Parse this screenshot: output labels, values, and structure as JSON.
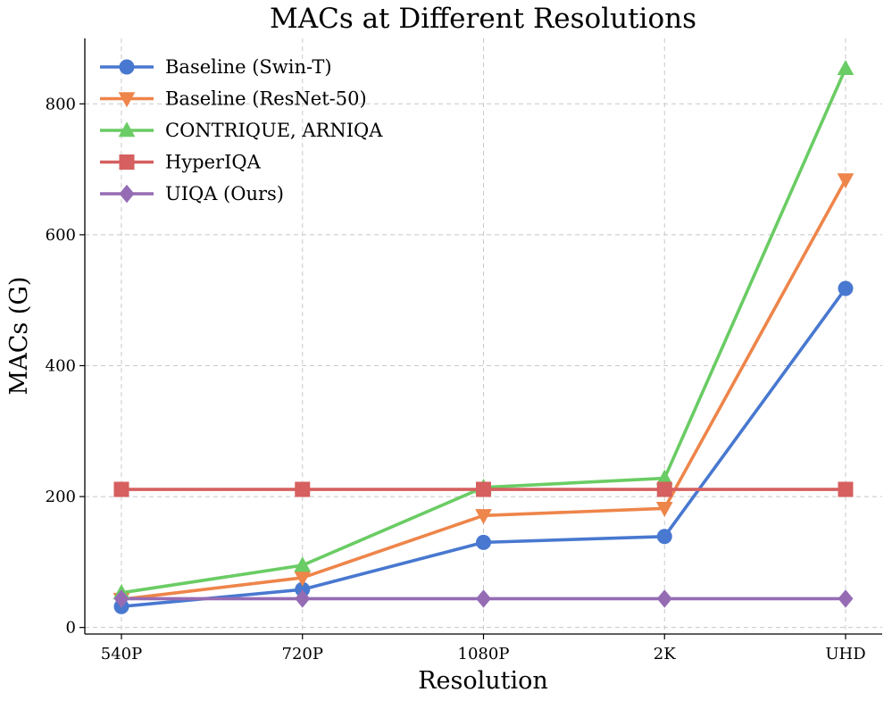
{
  "chart_data": {
    "type": "line",
    "title": "MACs at Different Resolutions",
    "xlabel": "Resolution",
    "ylabel": "MACs (G)",
    "categories": [
      "540P",
      "720P",
      "1080P",
      "2K",
      "UHD"
    ],
    "ylim": [
      -10,
      900
    ],
    "yticks": [
      0,
      200,
      400,
      600,
      800
    ],
    "grid": true,
    "legend_position": "top-left",
    "series": [
      {
        "name": "Baseline (Swin-T)",
        "color": "#4878d0",
        "marker": "circle",
        "values": [
          32,
          58,
          130,
          139,
          518
        ]
      },
      {
        "name": "Baseline (ResNet-50)",
        "color": "#ee854a",
        "marker": "triangle-down",
        "values": [
          43,
          76,
          171,
          182,
          684
        ]
      },
      {
        "name": "CONTRIQUE, ARNIQA",
        "color": "#6acc64",
        "marker": "triangle-up",
        "values": [
          53,
          95,
          214,
          228,
          854
        ]
      },
      {
        "name": "HyperIQA",
        "color": "#d65f5f",
        "marker": "square",
        "values": [
          211,
          211,
          211,
          211,
          211
        ]
      },
      {
        "name": "UIQA (Ours)",
        "color": "#956cb4",
        "marker": "diamond",
        "values": [
          44,
          44,
          44,
          44,
          44
        ]
      }
    ]
  }
}
